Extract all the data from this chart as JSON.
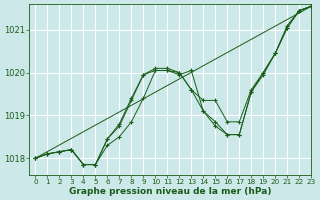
{
  "bg_color": "#cce8e8",
  "grid_color": "#ffffff",
  "line_color": "#1a5c1a",
  "ylim": [
    1017.6,
    1021.6
  ],
  "xlim": [
    -0.5,
    23
  ],
  "yticks": [
    1018,
    1019,
    1020,
    1021
  ],
  "xticks": [
    0,
    1,
    2,
    3,
    4,
    5,
    6,
    7,
    8,
    9,
    10,
    11,
    12,
    13,
    14,
    15,
    16,
    17,
    18,
    19,
    20,
    21,
    22,
    23
  ],
  "xlabel": "Graphe pression niveau de la mer (hPa)",
  "series": [
    {
      "x": [
        0,
        1,
        2,
        3,
        4,
        5,
        6,
        7,
        8,
        9,
        10,
        11,
        12,
        13,
        14,
        15,
        16,
        17,
        18,
        19,
        20,
        21,
        22,
        23
      ],
      "y": [
        1018.0,
        1018.1,
        1018.15,
        1018.2,
        1017.85,
        1017.85,
        1018.3,
        1018.5,
        1018.85,
        1019.4,
        1020.05,
        1020.05,
        1019.95,
        1020.05,
        1019.1,
        1018.75,
        1018.55,
        1018.55,
        1019.55,
        1020.0,
        1020.45,
        1021.1,
        1021.45,
        1021.55
      ]
    },
    {
      "x": [
        0,
        1,
        2,
        3,
        4,
        5,
        6,
        7,
        8,
        9,
        10,
        11,
        12,
        13,
        14,
        15,
        16,
        17,
        18,
        19,
        20,
        21,
        22,
        23
      ],
      "y": [
        1018.0,
        1018.1,
        1018.15,
        1018.2,
        1017.85,
        1017.85,
        1018.45,
        1018.75,
        1019.35,
        1019.95,
        1020.05,
        1020.05,
        1020.0,
        1019.6,
        1019.35,
        1019.35,
        1018.85,
        1018.85,
        1019.6,
        1020.0,
        1020.45,
        1021.05,
        1021.45,
        1021.55
      ]
    },
    {
      "x": [
        0,
        1,
        2,
        3,
        4,
        5,
        6,
        7,
        8,
        9,
        10,
        11,
        12,
        13,
        14,
        15,
        16,
        17,
        18,
        19,
        20,
        21,
        22,
        23
      ],
      "y": [
        1018.0,
        1018.1,
        1018.15,
        1018.2,
        1017.85,
        1017.85,
        1018.45,
        1018.8,
        1019.4,
        1019.95,
        1020.1,
        1020.1,
        1020.0,
        1019.6,
        1019.1,
        1018.85,
        1018.55,
        1018.55,
        1019.55,
        1019.95,
        1020.45,
        1021.05,
        1021.45,
        1021.55
      ]
    },
    {
      "x": [
        0,
        23
      ],
      "y": [
        1018.0,
        1021.55
      ]
    }
  ],
  "ytick_fontsize": 6,
  "xtick_fontsize": 5.2,
  "xlabel_fontsize": 6.5
}
